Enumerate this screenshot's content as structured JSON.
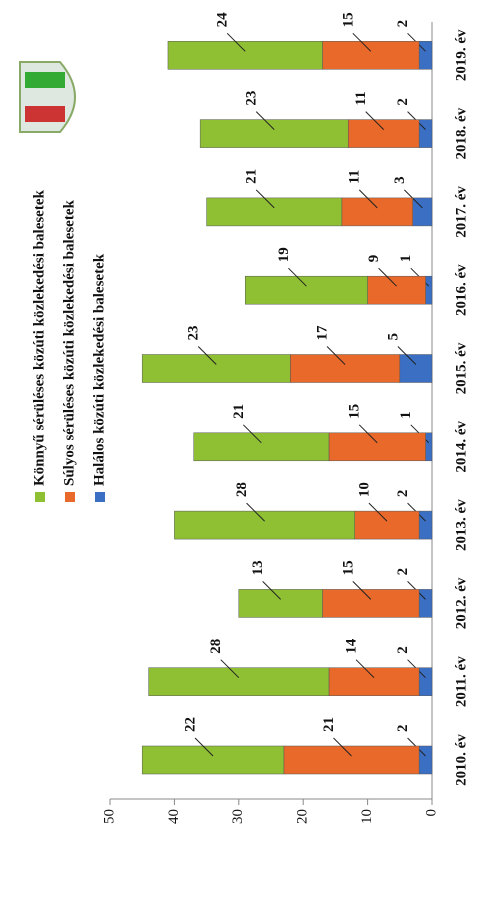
{
  "chart_data": {
    "type": "stacked_bar",
    "categories": [
      "2010. év",
      "2011. év",
      "2012. év",
      "2013. év",
      "2014. év",
      "2015. év",
      "2016. év",
      "2017. év",
      "2018. év",
      "2019. év"
    ],
    "series": [
      {
        "name": "Könnyű sérüléses közúti közlekedési balesetek",
        "color": "#8fc034",
        "values": [
          22,
          28,
          13,
          28,
          21,
          23,
          19,
          21,
          23,
          24
        ]
      },
      {
        "name": "Súlyos sérüléses közúti közlekedési balesetek",
        "color": "#e8692a",
        "values": [
          21,
          14,
          15,
          10,
          15,
          17,
          9,
          11,
          11,
          15
        ]
      },
      {
        "name": "Halálos közúti közlekedési balesetek",
        "color": "#3a6fc4",
        "values": [
          2,
          2,
          2,
          2,
          1,
          5,
          1,
          3,
          2,
          2
        ]
      }
    ],
    "ylim": [
      0,
      50
    ],
    "yticks": [
      0,
      10,
      20,
      30,
      40,
      50
    ]
  }
}
